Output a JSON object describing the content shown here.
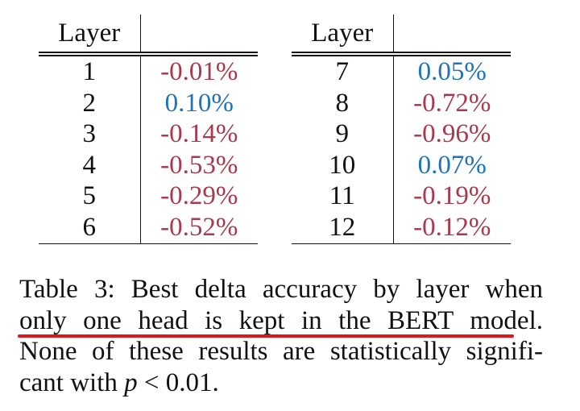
{
  "tables": [
    {
      "header": {
        "layer": "Layer",
        "value": ""
      },
      "rows": [
        {
          "layer": "1",
          "delta": "-0.01%",
          "sign": "neg"
        },
        {
          "layer": "2",
          "delta": "0.10%",
          "sign": "pos"
        },
        {
          "layer": "3",
          "delta": "-0.14%",
          "sign": "neg"
        },
        {
          "layer": "4",
          "delta": "-0.53%",
          "sign": "neg"
        },
        {
          "layer": "5",
          "delta": "-0.29%",
          "sign": "neg"
        },
        {
          "layer": "6",
          "delta": "-0.52%",
          "sign": "neg"
        }
      ]
    },
    {
      "header": {
        "layer": "Layer",
        "value": ""
      },
      "rows": [
        {
          "layer": "7",
          "delta": "0.05%",
          "sign": "pos"
        },
        {
          "layer": "8",
          "delta": "-0.72%",
          "sign": "neg"
        },
        {
          "layer": "9",
          "delta": "-0.96%",
          "sign": "neg"
        },
        {
          "layer": "10",
          "delta": "0.07%",
          "sign": "pos"
        },
        {
          "layer": "11",
          "delta": "-0.19%",
          "sign": "neg"
        },
        {
          "layer": "12",
          "delta": "-0.12%",
          "sign": "neg"
        }
      ]
    }
  ],
  "colors": {
    "negative": "#a83a4d",
    "positive": "#1f74b5",
    "underline": "#e0181c"
  },
  "caption": {
    "line1": "Table 3:  Best delta accuracy by layer when",
    "line2": "only one head is kept in the BERT model.",
    "line3": "None of these results are statistically signifi-",
    "line4_prefix": "cant with ",
    "line4_var": "p",
    "line4_op": " < ",
    "line4_value": "0.01."
  }
}
